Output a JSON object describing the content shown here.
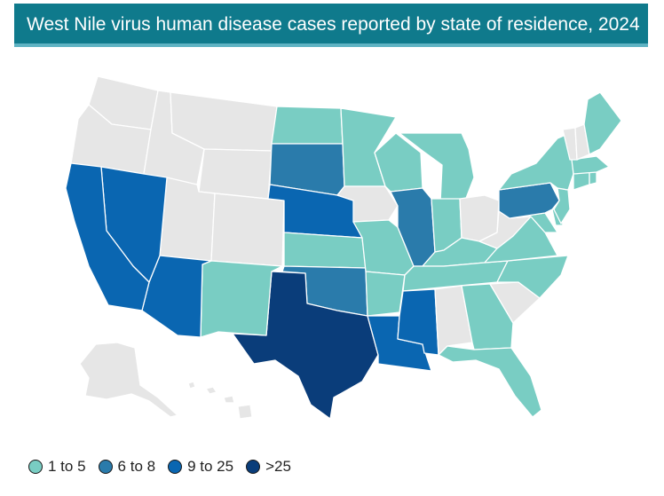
{
  "header": {
    "title": "West Nile virus human disease cases reported by state of residence, 2024"
  },
  "colors": {
    "no_cases": "#e6e6e6",
    "range_1_5": "#79cdc3",
    "range_6_8": "#2a7bab",
    "range_9_25": "#0a66b1",
    "range_gt25": "#0a3d7a"
  },
  "legend": {
    "items": [
      {
        "label": "1 to 5",
        "color": "#79cdc3"
      },
      {
        "label": "6 to 8",
        "color": "#2a7bab"
      },
      {
        "label": "9 to 25",
        "color": "#0a66b1"
      },
      {
        "label": ">25",
        "color": "#0a3d7a"
      }
    ]
  },
  "states": {
    "WA": "none",
    "OR": "none",
    "ID": "none",
    "MT": "none",
    "WY": "none",
    "UT": "none",
    "CO": "none",
    "IA": "none",
    "WV": "none",
    "OH": "none",
    "AL": "none",
    "SC": "none",
    "VT": "none",
    "NH": "none",
    "AK": "none",
    "HI": "none",
    "ND": "1-5",
    "MN": "1-5",
    "WI": "1-5",
    "MI": "1-5",
    "IN": "1-5",
    "KS": "1-5",
    "MO": "1-5",
    "AR": "1-5",
    "NM": "1-5",
    "KY": "1-5",
    "TN": "1-5",
    "NC": "1-5",
    "VA": "1-5",
    "GA": "1-5",
    "FL": "1-5",
    "NY": "1-5",
    "ME": "1-5",
    "MA": "1-5",
    "CT": "1-5",
    "RI": "1-5",
    "NJ": "1-5",
    "DE": "1-5",
    "MD": "1-5",
    "SD": "6-8",
    "OK": "6-8",
    "IL": "6-8",
    "PA": "6-8",
    "CA": "9-25",
    "NV": "9-25",
    "AZ": "9-25",
    "NE": "9-25",
    "LA": "9-25",
    "MS": "9-25",
    "TX": ">25"
  }
}
